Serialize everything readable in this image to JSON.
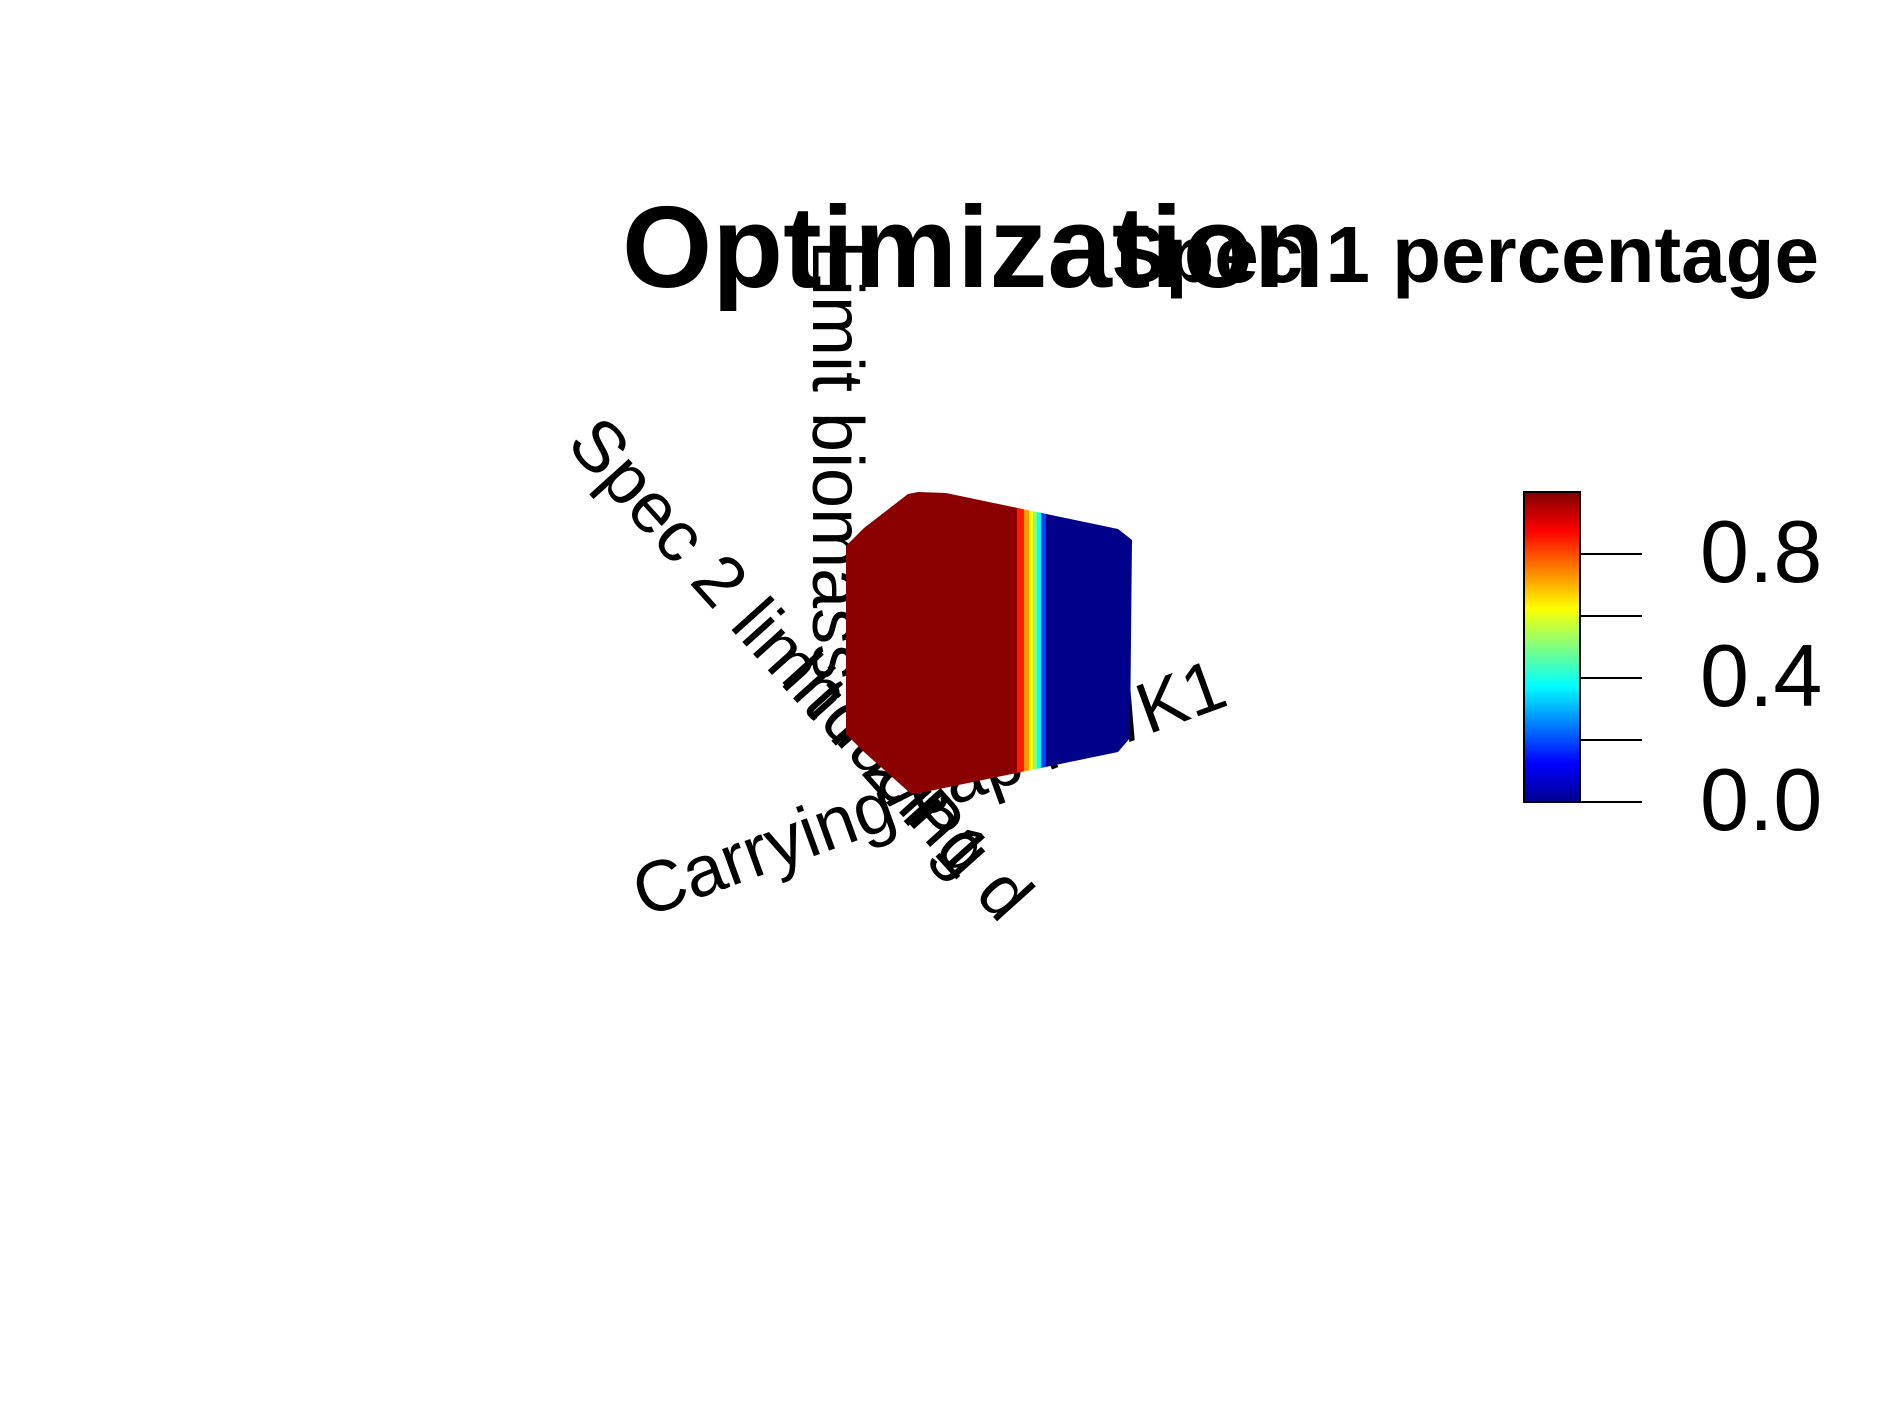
{
  "chart_data": {
    "type": "heatmap",
    "title": "Optimization",
    "subtitle": "Spec 1 percentage",
    "axes": {
      "z_label": "Limit biomass",
      "x_label": "Spec 2 limit P2/P1",
      "y_label": "Carrying cap K2/K1",
      "w_label": "Inducing d"
    },
    "colorbar": {
      "colormap": "jet",
      "range": [
        0.0,
        1.0
      ],
      "ticks": [
        0.0,
        0.2,
        0.4,
        0.6,
        0.8,
        1.0
      ],
      "tick_labels": [
        "0.0",
        "0.4",
        "0.8"
      ],
      "tick_label_values": [
        0.0,
        0.4,
        0.8
      ]
    },
    "surface": {
      "description_value_left": 1.0,
      "description_value_right": 0.0,
      "transition_position": 0.6
    }
  }
}
